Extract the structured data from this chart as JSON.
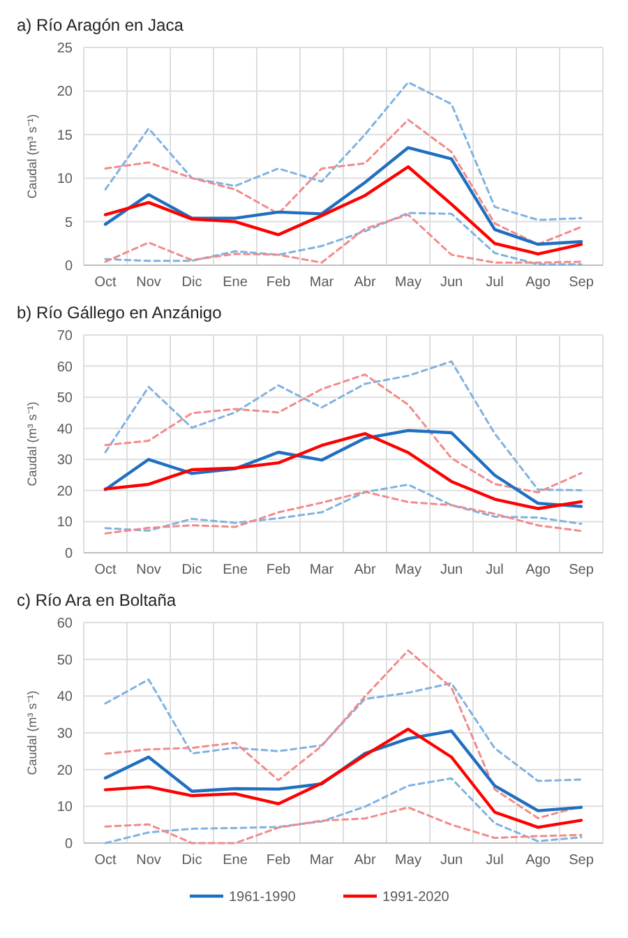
{
  "chart_data": [
    {
      "type": "line",
      "title": "a) Río Aragón en Jaca",
      "ylabel": "Caudal (m³ s⁻¹)",
      "categories": [
        "Oct",
        "Nov",
        "Dic",
        "Ene",
        "Feb",
        "Mar",
        "Abr",
        "May",
        "Jun",
        "Jul",
        "Ago",
        "Sep"
      ],
      "ylim": [
        0,
        25
      ],
      "yticks": [
        0,
        5,
        10,
        15,
        20,
        25
      ],
      "grid": true,
      "legend": false,
      "marker": "none",
      "series": [
        {
          "color": "#7fb2e0",
          "line_style": "dashed",
          "values": [
            8.7,
            15.7,
            10.0,
            9.1,
            11.1,
            9.6,
            15.0,
            21.0,
            18.5,
            6.7,
            5.2,
            5.4
          ]
        },
        {
          "color": "#7fb2e0",
          "line_style": "dashed",
          "values": [
            0.7,
            0.5,
            0.5,
            1.6,
            1.2,
            2.2,
            3.9,
            6.0,
            5.9,
            1.4,
            0.1,
            0.1
          ]
        },
        {
          "color": "#f28a8a",
          "line_style": "dashed",
          "values": [
            11.1,
            11.8,
            10.0,
            8.7,
            5.9,
            11.1,
            11.7,
            16.7,
            13.0,
            4.8,
            2.4,
            4.4
          ]
        },
        {
          "color": "#f28a8a",
          "line_style": "dashed",
          "values": [
            0.4,
            2.6,
            0.6,
            1.3,
            1.2,
            0.3,
            4.2,
            5.8,
            1.2,
            0.3,
            0.3,
            0.4
          ]
        },
        {
          "color": "#1f6fc0",
          "line_style": "solid",
          "values": [
            4.7,
            8.1,
            5.4,
            5.4,
            6.1,
            5.9,
            9.5,
            13.5,
            12.2,
            4.1,
            2.4,
            2.7
          ]
        },
        {
          "color": "#ff0000",
          "line_style": "solid",
          "values": [
            5.8,
            7.2,
            5.3,
            5.0,
            3.5,
            5.7,
            8.0,
            11.3,
            7.0,
            2.5,
            1.3,
            2.4
          ]
        }
      ]
    },
    {
      "type": "line",
      "title": "b) Río Gállego en Anzánigo",
      "ylabel": "Caudal (m³ s⁻¹)",
      "categories": [
        "Oct",
        "Nov",
        "Dic",
        "Ene",
        "Feb",
        "Mar",
        "Abr",
        "May",
        "Jun",
        "Jul",
        "Ago",
        "Sep"
      ],
      "ylim": [
        0,
        70
      ],
      "yticks": [
        0,
        10,
        20,
        30,
        40,
        50,
        60,
        70
      ],
      "grid": true,
      "legend": false,
      "marker": "none",
      "series": [
        {
          "color": "#7fb2e0",
          "line_style": "dashed",
          "values": [
            32.3,
            53.3,
            40.2,
            45.1,
            53.8,
            46.7,
            54.3,
            56.9,
            61.5,
            38.3,
            20.3,
            20.1
          ]
        },
        {
          "color": "#7fb2e0",
          "line_style": "dashed",
          "values": [
            7.9,
            7.1,
            10.9,
            9.6,
            11.1,
            13.0,
            19.5,
            21.9,
            15.3,
            11.6,
            11.3,
            9.3
          ]
        },
        {
          "color": "#f28a8a",
          "line_style": "dashed",
          "values": [
            34.6,
            36.0,
            44.9,
            46.2,
            45.1,
            52.6,
            57.3,
            47.6,
            30.4,
            22.1,
            19.4,
            25.6
          ]
        },
        {
          "color": "#f28a8a",
          "line_style": "dashed",
          "values": [
            6.2,
            8.0,
            8.8,
            8.3,
            13.0,
            16.1,
            19.6,
            16.3,
            15.3,
            12.5,
            8.8,
            7.0
          ]
        },
        {
          "color": "#1f6fc0",
          "line_style": "solid",
          "values": [
            20.3,
            30.0,
            25.5,
            27.0,
            32.3,
            29.8,
            36.8,
            39.3,
            38.6,
            24.9,
            15.9,
            14.9
          ]
        },
        {
          "color": "#ff0000",
          "line_style": "solid",
          "values": [
            20.5,
            22.0,
            26.7,
            27.2,
            28.9,
            34.5,
            38.3,
            32.2,
            22.9,
            17.2,
            14.2,
            16.4
          ]
        }
      ]
    },
    {
      "type": "line",
      "title": "c) Río Ara en Boltaña",
      "ylabel": "Caudal (m³ s⁻¹)",
      "categories": [
        "Oct",
        "Nov",
        "Dic",
        "Ene",
        "Feb",
        "Mar",
        "Abr",
        "May",
        "Jun",
        "Jul",
        "Ago",
        "Sep"
      ],
      "ylim": [
        0,
        60
      ],
      "yticks": [
        0,
        10,
        20,
        30,
        40,
        50,
        60
      ],
      "grid": true,
      "legend": "bottom",
      "marker": "none",
      "series": [
        {
          "color": "#7fb2e0",
          "line_style": "dashed",
          "values": [
            38.0,
            44.5,
            24.4,
            25.9,
            25.0,
            26.6,
            39.2,
            40.9,
            43.5,
            25.8,
            16.9,
            17.3
          ]
        },
        {
          "color": "#7fb2e0",
          "line_style": "dashed",
          "values": [
            0.0,
            2.9,
            3.9,
            4.1,
            4.4,
            5.9,
            9.9,
            15.6,
            17.6,
            5.4,
            0.5,
            1.6
          ]
        },
        {
          "color": "#f28a8a",
          "line_style": "dashed",
          "values": [
            24.3,
            25.5,
            25.9,
            27.3,
            17.1,
            26.4,
            39.9,
            52.4,
            42.3,
            14.6,
            6.8,
            10.0
          ]
        },
        {
          "color": "#f28a8a",
          "line_style": "dashed",
          "values": [
            4.5,
            5.1,
            0.0,
            0.0,
            4.2,
            6.1,
            6.7,
            9.7,
            5.0,
            1.4,
            1.9,
            2.2
          ]
        },
        {
          "name": "1961-1990",
          "color": "#1f6fc0",
          "line_style": "solid",
          "values": [
            17.7,
            23.4,
            14.1,
            14.8,
            14.7,
            16.1,
            24.4,
            28.4,
            30.5,
            15.6,
            8.8,
            9.7
          ]
        },
        {
          "name": "1991-2020",
          "color": "#ff0000",
          "line_style": "solid",
          "values": [
            14.5,
            15.3,
            12.9,
            13.4,
            10.7,
            16.3,
            23.9,
            31.0,
            23.4,
            8.4,
            4.3,
            6.2
          ]
        }
      ]
    }
  ]
}
